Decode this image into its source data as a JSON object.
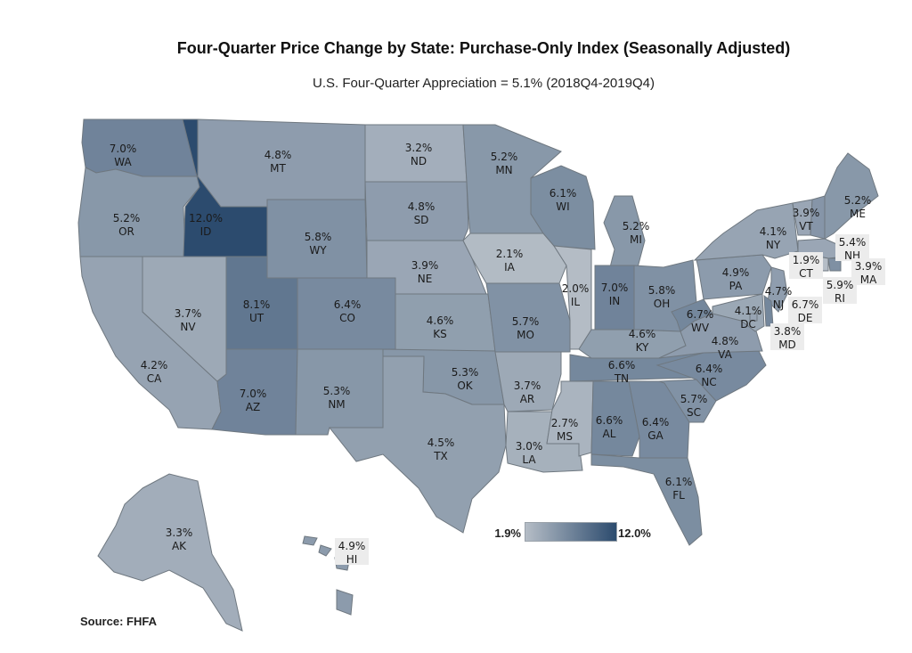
{
  "title": "Four-Quarter Price Change by State:  Purchase-Only Index (Seasonally Adjusted)",
  "subtitle": "U.S. Four-Quarter Appreciation = 5.1% (2018Q4-2019Q4)",
  "source": "Source:  FHFA",
  "legend": {
    "min_label": "1.9%",
    "max_label": "12.0%",
    "min": 1.9,
    "max": 12.0,
    "low_color": "#b5bdc6",
    "high_color": "#2c4b6e"
  },
  "states": [
    {
      "abbr": "WA",
      "value": 7.0,
      "value_label": "7.0%"
    },
    {
      "abbr": "OR",
      "value": 5.2,
      "value_label": "5.2%"
    },
    {
      "abbr": "CA",
      "value": 4.2,
      "value_label": "4.2%"
    },
    {
      "abbr": "NV",
      "value": 3.7,
      "value_label": "3.7%"
    },
    {
      "abbr": "ID",
      "value": 12.0,
      "value_label": "12.0%"
    },
    {
      "abbr": "MT",
      "value": 4.8,
      "value_label": "4.8%"
    },
    {
      "abbr": "WY",
      "value": 5.8,
      "value_label": "5.8%"
    },
    {
      "abbr": "UT",
      "value": 8.1,
      "value_label": "8.1%"
    },
    {
      "abbr": "AZ",
      "value": 7.0,
      "value_label": "7.0%"
    },
    {
      "abbr": "CO",
      "value": 6.4,
      "value_label": "6.4%"
    },
    {
      "abbr": "NM",
      "value": 5.3,
      "value_label": "5.3%"
    },
    {
      "abbr": "ND",
      "value": 3.2,
      "value_label": "3.2%"
    },
    {
      "abbr": "SD",
      "value": 4.8,
      "value_label": "4.8%"
    },
    {
      "abbr": "NE",
      "value": 3.9,
      "value_label": "3.9%"
    },
    {
      "abbr": "KS",
      "value": 4.6,
      "value_label": "4.6%"
    },
    {
      "abbr": "OK",
      "value": 5.3,
      "value_label": "5.3%"
    },
    {
      "abbr": "TX",
      "value": 4.5,
      "value_label": "4.5%"
    },
    {
      "abbr": "MN",
      "value": 5.2,
      "value_label": "5.2%"
    },
    {
      "abbr": "IA",
      "value": 2.1,
      "value_label": "2.1%"
    },
    {
      "abbr": "MO",
      "value": 5.7,
      "value_label": "5.7%"
    },
    {
      "abbr": "AR",
      "value": 3.7,
      "value_label": "3.7%"
    },
    {
      "abbr": "LA",
      "value": 3.0,
      "value_label": "3.0%"
    },
    {
      "abbr": "WI",
      "value": 6.1,
      "value_label": "6.1%"
    },
    {
      "abbr": "IL",
      "value": 2.0,
      "value_label": "2.0%"
    },
    {
      "abbr": "MI",
      "value": 5.2,
      "value_label": "5.2%"
    },
    {
      "abbr": "IN",
      "value": 7.0,
      "value_label": "7.0%"
    },
    {
      "abbr": "OH",
      "value": 5.8,
      "value_label": "5.8%"
    },
    {
      "abbr": "KY",
      "value": 4.6,
      "value_label": "4.6%"
    },
    {
      "abbr": "TN",
      "value": 6.6,
      "value_label": "6.6%"
    },
    {
      "abbr": "MS",
      "value": 2.7,
      "value_label": "2.7%"
    },
    {
      "abbr": "AL",
      "value": 6.6,
      "value_label": "6.6%"
    },
    {
      "abbr": "GA",
      "value": 6.4,
      "value_label": "6.4%"
    },
    {
      "abbr": "FL",
      "value": 6.1,
      "value_label": "6.1%"
    },
    {
      "abbr": "SC",
      "value": 5.7,
      "value_label": "5.7%"
    },
    {
      "abbr": "NC",
      "value": 6.4,
      "value_label": "6.4%"
    },
    {
      "abbr": "VA",
      "value": 4.8,
      "value_label": "4.8%"
    },
    {
      "abbr": "WV",
      "value": 6.7,
      "value_label": "6.7%"
    },
    {
      "abbr": "PA",
      "value": 4.9,
      "value_label": "4.9%"
    },
    {
      "abbr": "NY",
      "value": 4.1,
      "value_label": "4.1%"
    },
    {
      "abbr": "VT",
      "value": 3.9,
      "value_label": "3.9%"
    },
    {
      "abbr": "NH",
      "value": 5.4,
      "value_label": "5.4%"
    },
    {
      "abbr": "ME",
      "value": 5.2,
      "value_label": "5.2%"
    },
    {
      "abbr": "MA",
      "value": 3.9,
      "value_label": "3.9%"
    },
    {
      "abbr": "RI",
      "value": 5.9,
      "value_label": "5.9%"
    },
    {
      "abbr": "CT",
      "value": 1.9,
      "value_label": "1.9%"
    },
    {
      "abbr": "NJ",
      "value": 4.7,
      "value_label": "4.7%"
    },
    {
      "abbr": "DE",
      "value": 6.7,
      "value_label": "6.7%"
    },
    {
      "abbr": "MD",
      "value": 3.8,
      "value_label": "3.8%"
    },
    {
      "abbr": "DC",
      "value": 4.1,
      "value_label": "4.1%"
    },
    {
      "abbr": "AK",
      "value": 3.3,
      "value_label": "3.3%"
    },
    {
      "abbr": "HI",
      "value": 4.9,
      "value_label": "4.9%"
    }
  ]
}
